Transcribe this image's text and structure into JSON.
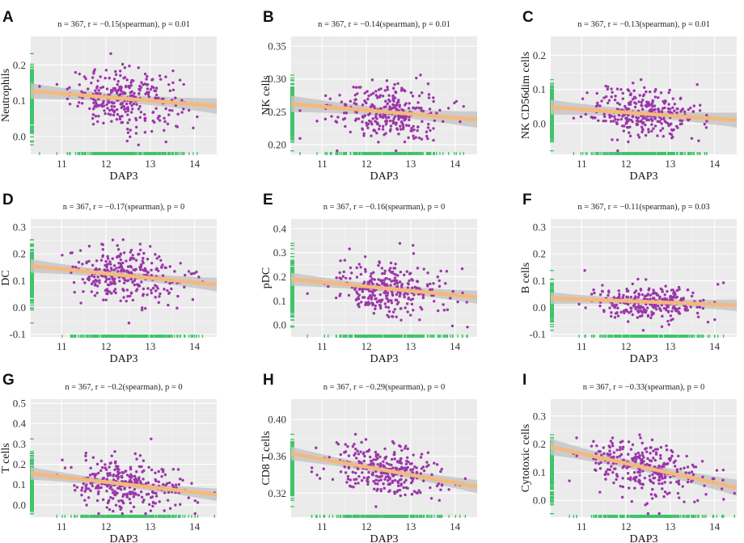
{
  "figure": {
    "x_label": "DAP3"
  },
  "colors": {
    "point": "#9b36a9",
    "rug": "#3fc46a",
    "fit": "#f5b87c",
    "band": "#c6c6c6",
    "panel": "#ebebeb"
  },
  "chart_data": [
    {
      "letter": "A",
      "type": "scatter",
      "subtitle": "n = 367, r = −0.15(spearman), p = 0.01",
      "ylabel": "Neutrophils",
      "xlabel": "DAP3",
      "xlim": [
        10.3,
        14.5
      ],
      "ylim": [
        -0.05,
        0.28
      ],
      "xticks": [
        11,
        12,
        13,
        14
      ],
      "yticks": [
        0.0,
        0.1,
        0.2
      ],
      "ytick_labels": [
        "0.0",
        "0.1",
        "0.2"
      ],
      "fit": [
        [
          10.3,
          0.127
        ],
        [
          14.5,
          0.085
        ]
      ],
      "band": 0.012,
      "y_center": 0.11,
      "y_spread": 0.055
    },
    {
      "letter": "B",
      "type": "scatter",
      "subtitle": "n = 367, r = −0.14(spearman), p = 0.01",
      "ylabel": "NK cells",
      "xlabel": "DAP3",
      "xlim": [
        10.3,
        14.5
      ],
      "ylim": [
        0.185,
        0.365
      ],
      "xticks": [
        11,
        12,
        13,
        14
      ],
      "yticks": [
        0.2,
        0.25,
        0.3,
        0.35
      ],
      "ytick_labels": [
        "0.20",
        "0.25",
        "0.30",
        "0.35"
      ],
      "fit": [
        [
          10.3,
          0.262
        ],
        [
          14.5,
          0.238
        ]
      ],
      "band": 0.007,
      "y_center": 0.25,
      "y_spread": 0.03
    },
    {
      "letter": "C",
      "type": "scatter",
      "subtitle": "n = 367, r = −0.13(spearman), p = 0.01",
      "ylabel": "NK CD56dim cells",
      "xlabel": "DAP3",
      "xlim": [
        10.3,
        14.5
      ],
      "ylim": [
        -0.09,
        0.255
      ],
      "xticks": [
        11,
        12,
        13,
        14
      ],
      "yticks": [
        0.0,
        0.1,
        0.2
      ],
      "ytick_labels": [
        "0.0",
        "0.1",
        "0.2"
      ],
      "fit": [
        [
          10.3,
          0.048
        ],
        [
          14.5,
          0.01
        ]
      ],
      "band": 0.012,
      "y_center": 0.03,
      "y_spread": 0.05
    },
    {
      "letter": "D",
      "type": "scatter",
      "subtitle": "n = 367, r = −0.17(spearman), p = 0",
      "ylabel": "DC",
      "xlabel": "DAP3",
      "xlim": [
        10.3,
        14.5
      ],
      "ylim": [
        -0.11,
        0.33
      ],
      "xticks": [
        11,
        12,
        13,
        14
      ],
      "yticks": [
        -0.1,
        0.0,
        0.1,
        0.2,
        0.3
      ],
      "ytick_labels": [
        "-0.1",
        "0.0",
        "0.1",
        "0.2",
        "0.3"
      ],
      "fit": [
        [
          10.3,
          0.155
        ],
        [
          14.5,
          0.085
        ]
      ],
      "band": 0.014,
      "y_center": 0.12,
      "y_spread": 0.07
    },
    {
      "letter": "E",
      "type": "scatter",
      "subtitle": "n = 367, r = −0.16(spearman), p = 0",
      "ylabel": "pDC",
      "xlabel": "DAP3",
      "xlim": [
        10.3,
        14.5
      ],
      "ylim": [
        -0.05,
        0.44
      ],
      "xticks": [
        11,
        12,
        13,
        14
      ],
      "yticks": [
        0.0,
        0.1,
        0.2,
        0.3,
        0.4
      ],
      "ytick_labels": [
        "0.0",
        "0.1",
        "0.2",
        "0.3",
        "0.4"
      ],
      "fit": [
        [
          10.3,
          0.19
        ],
        [
          14.5,
          0.115
        ]
      ],
      "band": 0.015,
      "y_center": 0.15,
      "y_spread": 0.08
    },
    {
      "letter": "F",
      "type": "scatter",
      "subtitle": "n = 367, r = −0.11(spearman), p = 0.03",
      "ylabel": "B cells",
      "xlabel": "DAP3",
      "xlim": [
        10.3,
        14.5
      ],
      "ylim": [
        -0.11,
        0.33
      ],
      "xticks": [
        11,
        12,
        13,
        14
      ],
      "yticks": [
        -0.1,
        0.0,
        0.1,
        0.2,
        0.3
      ],
      "ytick_labels": [
        "-0.1",
        "0.0",
        "0.1",
        "0.2",
        "0.3"
      ],
      "fit": [
        [
          10.3,
          0.035
        ],
        [
          14.5,
          0.008
        ]
      ],
      "band": 0.012,
      "y_center": 0.02,
      "y_spread": 0.04
    },
    {
      "letter": "G",
      "type": "scatter",
      "subtitle": "n = 367, r = −0.2(spearman), p = 0",
      "ylabel": "T cells",
      "xlabel": "DAP3",
      "xlim": [
        10.3,
        14.5
      ],
      "ylim": [
        -0.06,
        0.52
      ],
      "xticks": [
        11,
        12,
        13,
        14
      ],
      "yticks": [
        0.0,
        0.1,
        0.2,
        0.3,
        0.4,
        0.5
      ],
      "ytick_labels": [
        "0.0",
        "0.1",
        "0.2",
        "0.3",
        "0.4",
        "0.5"
      ],
      "fit": [
        [
          10.3,
          0.155
        ],
        [
          14.5,
          0.05
        ]
      ],
      "band": 0.017,
      "y_center": 0.1,
      "y_spread": 0.08
    },
    {
      "letter": "H",
      "type": "scatter",
      "subtitle": "n = 367, r = −0.29(spearman), p = 0",
      "ylabel": "CD8 T cells",
      "xlabel": "DAP3",
      "xlim": [
        10.3,
        14.5
      ],
      "ylim": [
        0.294,
        0.422
      ],
      "xticks": [
        11,
        12,
        13,
        14
      ],
      "yticks": [
        0.32,
        0.36,
        0.4
      ],
      "ytick_labels": [
        "0.32",
        "0.36",
        "0.40"
      ],
      "fit": [
        [
          10.3,
          0.363
        ],
        [
          14.5,
          0.327
        ]
      ],
      "band": 0.004,
      "y_center": 0.35,
      "y_spread": 0.018
    },
    {
      "letter": "I",
      "type": "scatter",
      "subtitle": "n = 367, r = −0.33(spearman), p = 0",
      "ylabel": "Cytotoxic cells",
      "xlabel": "DAP3",
      "xlim": [
        10.3,
        14.5
      ],
      "ylim": [
        -0.06,
        0.36
      ],
      "xticks": [
        11,
        12,
        13,
        14
      ],
      "yticks": [
        0.0,
        0.1,
        0.2,
        0.3
      ],
      "ytick_labels": [
        "0.0",
        "0.1",
        "0.2",
        "0.3"
      ],
      "fit": [
        [
          10.3,
          0.19
        ],
        [
          14.5,
          0.045
        ]
      ],
      "band": 0.016,
      "y_center": 0.12,
      "y_spread": 0.07
    }
  ]
}
